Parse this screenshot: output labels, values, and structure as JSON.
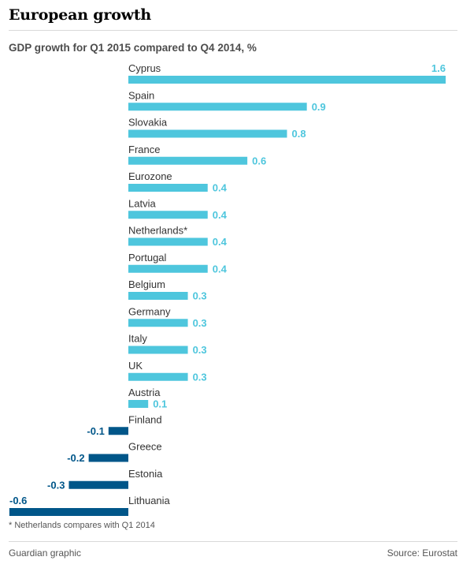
{
  "title": "European growth",
  "subtitle": "GDP growth for Q1 2015 compared to Q4 2014, %",
  "footnote": "* Netherlands compares with Q1 2014",
  "credit": "Guardian graphic",
  "source": "Source: Eurostat",
  "colors": {
    "positive": "#4ec6dd",
    "negative": "#005689",
    "label": "#333333"
  },
  "chart_data": {
    "type": "bar",
    "orientation": "horizontal",
    "title": "European growth",
    "subtitle": "GDP growth for Q1 2015 compared to Q4 2014, %",
    "xlabel": "",
    "ylabel": "",
    "xlim": [
      -0.6,
      1.6
    ],
    "categories": [
      "Cyprus",
      "Spain",
      "Slovakia",
      "France",
      "Eurozone",
      "Latvia",
      "Netherlands*",
      "Portugal",
      "Belgium",
      "Germany",
      "Italy",
      "UK",
      "Austria",
      "Finland",
      "Greece",
      "Estonia",
      "Lithuania"
    ],
    "values": [
      1.6,
      0.9,
      0.8,
      0.6,
      0.4,
      0.4,
      0.4,
      0.4,
      0.3,
      0.3,
      0.3,
      0.3,
      0.1,
      -0.1,
      -0.2,
      -0.3,
      -0.6
    ],
    "value_labels": [
      "1.6",
      "0.9",
      "0.8",
      "0.6",
      "0.4",
      "0.4",
      "0.4",
      "0.4",
      "0.3",
      "0.3",
      "0.3",
      "0.3",
      "0.1",
      "-0.1",
      "-0.2",
      "-0.3",
      "-0.6"
    ],
    "grid": false,
    "legend": "none"
  }
}
